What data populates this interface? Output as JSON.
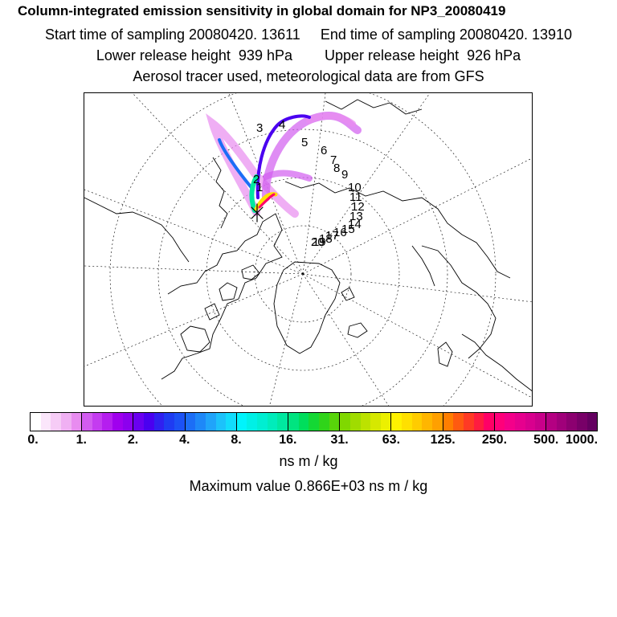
{
  "header": {
    "title": "Column-integrated emission sensitivity in global domain for NP3_20080419",
    "line2": "Start time of sampling 20080420. 13611     End time of sampling 20080420. 13910",
    "line3": "Lower release height  939 hPa        Upper release height  926 hPa",
    "line4": "Aerosol tracer used, meteorological data are from GFS"
  },
  "map": {
    "projection": "north polar stereographic",
    "trajectory_labels": [
      "1",
      "2",
      "3",
      "4",
      "5",
      "6",
      "7",
      "8",
      "9",
      "10",
      "11",
      "12",
      "13",
      "14",
      "15",
      "16",
      "17",
      "18",
      "19",
      "20"
    ],
    "colors": {
      "coast": "#000000",
      "grid": "#000000"
    }
  },
  "colorbar": {
    "tick_labels": [
      "0.",
      "1.",
      "2.",
      "4.",
      "8.",
      "16.",
      "31.",
      "63.",
      "125.",
      "250.",
      "500.",
      "1000."
    ],
    "colors": [
      "#ffffff",
      "#fbe6fb",
      "#f6ccf6",
      "#f0b0f3",
      "#e88cf0",
      "#d25cf0",
      "#c43cf0",
      "#b51eef",
      "#a000ee",
      "#8c00ee",
      "#6a00f0",
      "#4a00f0",
      "#3020f0",
      "#1f3cf2",
      "#1c52f5",
      "#1c6ef6",
      "#1e88f8",
      "#20a4fa",
      "#1cc2fb",
      "#12dcfc",
      "#00f4fc",
      "#00f0e6",
      "#00eed2",
      "#00ecbb",
      "#00e8a0",
      "#00e480",
      "#00de5c",
      "#14d834",
      "#30d41a",
      "#58d40a",
      "#80d800",
      "#a0dc00",
      "#bce200",
      "#d6e800",
      "#ecf000",
      "#fff200",
      "#ffe000",
      "#ffcc00",
      "#ffb600",
      "#ffa000",
      "#ff7e00",
      "#ff5a10",
      "#ff3a24",
      "#ff1c40",
      "#ff0066",
      "#ff007a",
      "#f4008a",
      "#e6008e",
      "#d8008e",
      "#c8008a",
      "#b40082",
      "#a0007a",
      "#8c0070",
      "#780068",
      "#640060"
    ],
    "units": "ns m / kg"
  },
  "footer": {
    "max_value": "Maximum value  0.866E+03 ns m / kg"
  }
}
